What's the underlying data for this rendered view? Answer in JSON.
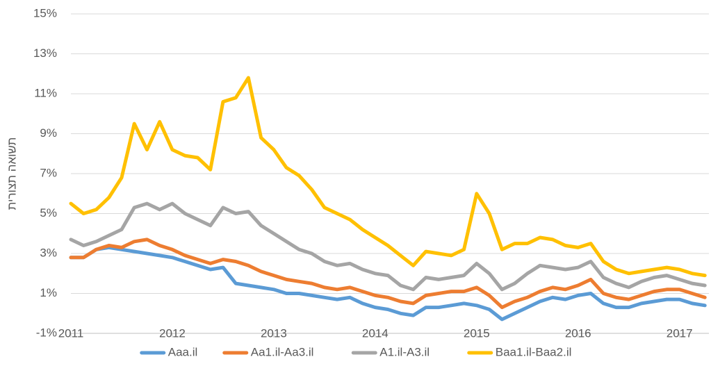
{
  "chart_data": {
    "type": "line",
    "y_label": "תשואה תצורית",
    "x": [
      2011,
      2011.125,
      2011.25,
      2011.375,
      2011.5,
      2011.625,
      2011.75,
      2011.875,
      2012,
      2012.125,
      2012.25,
      2012.375,
      2012.5,
      2012.625,
      2012.75,
      2012.875,
      2013,
      2013.125,
      2013.25,
      2013.375,
      2013.5,
      2013.625,
      2013.75,
      2013.875,
      2014,
      2014.125,
      2014.25,
      2014.375,
      2014.5,
      2014.625,
      2014.75,
      2014.875,
      2015,
      2015.125,
      2015.25,
      2015.375,
      2015.5,
      2015.625,
      2015.75,
      2015.875,
      2016,
      2016.125,
      2016.25,
      2016.375,
      2016.5,
      2016.625,
      2016.75,
      2016.875,
      2017,
      2017.125,
      2017.25
    ],
    "series": [
      {
        "name": "Aaa.il",
        "color": "#5b9bd5",
        "values": [
          2.8,
          2.8,
          3.2,
          3.3,
          3.2,
          3.1,
          3.0,
          2.9,
          2.8,
          2.6,
          2.4,
          2.2,
          2.3,
          1.5,
          1.4,
          1.3,
          1.2,
          1.0,
          1.0,
          0.9,
          0.8,
          0.7,
          0.8,
          0.5,
          0.3,
          0.2,
          0.0,
          -0.1,
          0.3,
          0.3,
          0.4,
          0.5,
          0.4,
          0.2,
          -0.3,
          0.0,
          0.3,
          0.6,
          0.8,
          0.7,
          0.9,
          1.0,
          0.5,
          0.3,
          0.3,
          0.5,
          0.6,
          0.7,
          0.7,
          0.5,
          0.4
        ]
      },
      {
        "name": "Aa1.il-Aa3.il",
        "color": "#ed7d31",
        "values": [
          2.8,
          2.8,
          3.2,
          3.4,
          3.3,
          3.6,
          3.7,
          3.4,
          3.2,
          2.9,
          2.7,
          2.5,
          2.7,
          2.6,
          2.4,
          2.1,
          1.9,
          1.7,
          1.6,
          1.5,
          1.3,
          1.2,
          1.3,
          1.1,
          0.9,
          0.8,
          0.6,
          0.5,
          0.9,
          1.0,
          1.1,
          1.1,
          1.3,
          0.9,
          0.3,
          0.6,
          0.8,
          1.1,
          1.3,
          1.2,
          1.4,
          1.7,
          1.0,
          0.8,
          0.7,
          0.9,
          1.1,
          1.2,
          1.2,
          1.0,
          0.8
        ]
      },
      {
        "name": "A1.il-A3.il",
        "color": "#a5a5a5",
        "values": [
          3.7,
          3.4,
          3.6,
          3.9,
          4.2,
          5.3,
          5.5,
          5.2,
          5.5,
          5.0,
          4.7,
          4.4,
          5.3,
          5.0,
          5.1,
          4.4,
          4.0,
          3.6,
          3.2,
          3.0,
          2.6,
          2.4,
          2.5,
          2.2,
          2.0,
          1.9,
          1.4,
          1.2,
          1.8,
          1.7,
          1.8,
          1.9,
          2.5,
          2.0,
          1.2,
          1.5,
          2.0,
          2.4,
          2.3,
          2.2,
          2.3,
          2.6,
          1.8,
          1.5,
          1.3,
          1.6,
          1.8,
          1.9,
          1.7,
          1.5,
          1.4
        ]
      },
      {
        "name": "Baa1.il-Baa2.il",
        "color": "#ffc000",
        "values": [
          5.5,
          5.0,
          5.2,
          5.8,
          6.8,
          9.5,
          8.2,
          9.6,
          8.2,
          7.9,
          7.8,
          7.2,
          10.6,
          10.8,
          11.8,
          8.8,
          8.2,
          7.3,
          6.9,
          6.2,
          5.3,
          5.0,
          4.7,
          4.2,
          3.8,
          3.4,
          2.9,
          2.4,
          3.1,
          3.0,
          2.9,
          3.2,
          6.0,
          5.0,
          3.2,
          3.5,
          3.5,
          3.8,
          3.7,
          3.4,
          3.3,
          3.5,
          2.6,
          2.2,
          2.0,
          2.1,
          2.2,
          2.3,
          2.2,
          2.0,
          1.9
        ]
      }
    ],
    "xlim": [
      2011,
      2017.29
    ],
    "xticks": [
      2011,
      2012,
      2013,
      2014,
      2015,
      2016,
      2017
    ],
    "ylim": [
      -1,
      15
    ],
    "yticks": [
      {
        "value": -1,
        "label": "-1%"
      },
      {
        "value": 1,
        "label": "1%"
      },
      {
        "value": 3,
        "label": "3%"
      },
      {
        "value": 5,
        "label": "5%"
      },
      {
        "value": 7,
        "label": "7%"
      },
      {
        "value": 9,
        "label": "9%"
      },
      {
        "value": 11,
        "label": "11%"
      },
      {
        "value": 13,
        "label": "13%"
      },
      {
        "value": 15,
        "label": "15%"
      }
    ],
    "grid": true
  }
}
